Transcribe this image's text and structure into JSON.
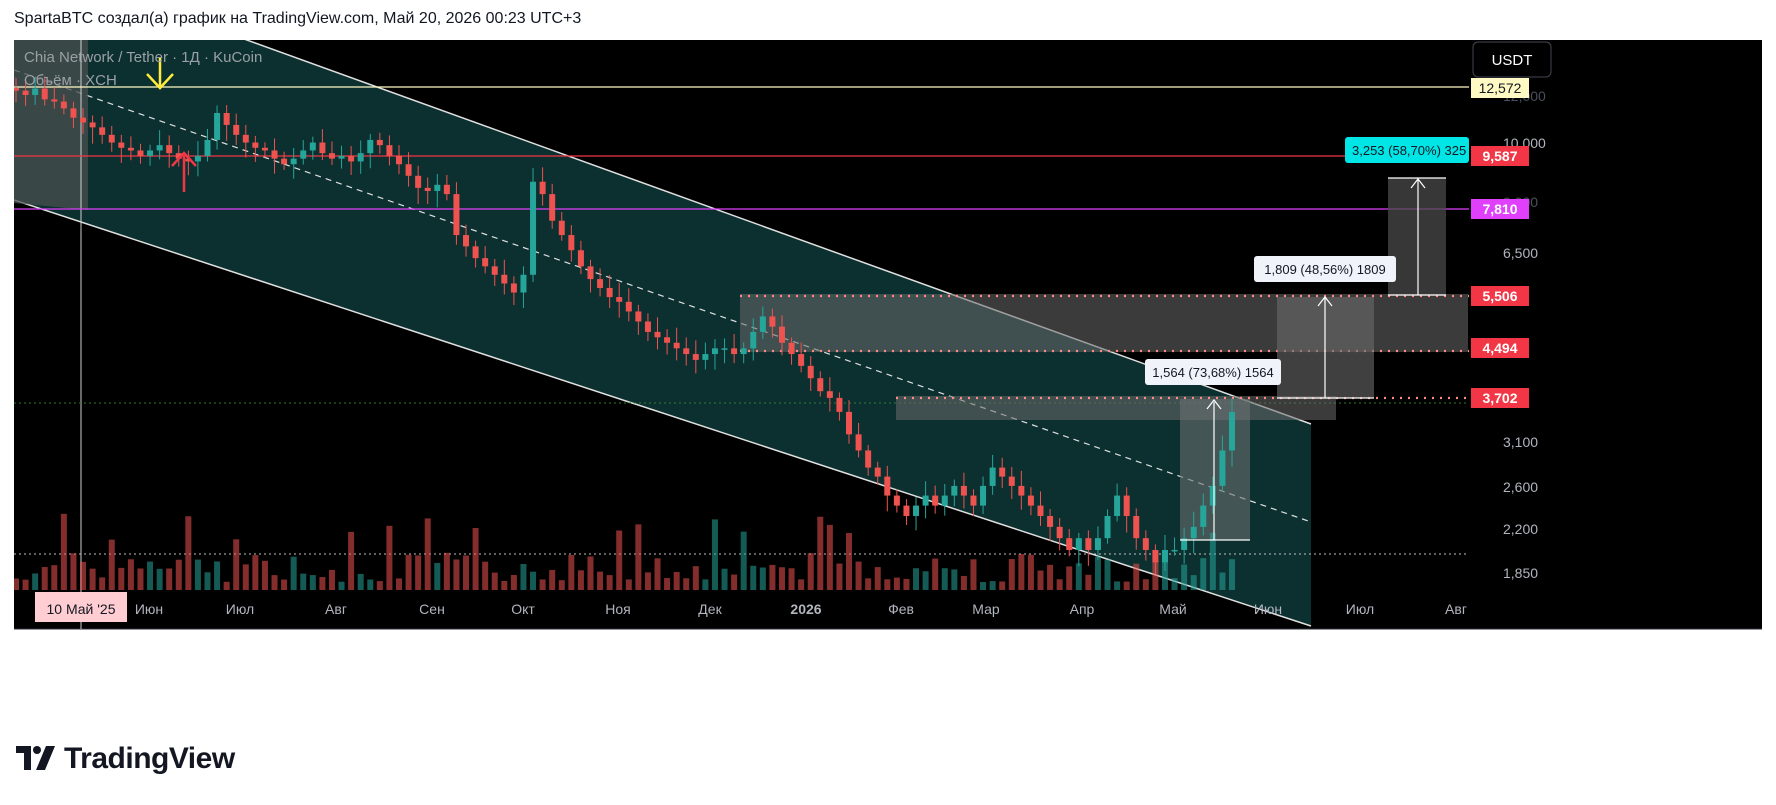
{
  "header": {
    "caption": "SpartaBTC создал(а) график на TradingView.com, Май 20, 2026 00:23 UTC+3"
  },
  "symbol": {
    "title": "Chia Network / Tether · 1Д · KuCoin",
    "volume_label": "Объём · XCH"
  },
  "currency_button": "USDT",
  "brand": {
    "name": "TradingView"
  },
  "colors": {
    "background": "#000000",
    "channel_fill": "#0c2f2f",
    "up_candle": "#26a69a",
    "down_candle": "#ef5350",
    "label_red": "#f23645",
    "label_magenta": "#e040fb",
    "label_cyan": "#00bcd4",
    "label_yellow": "#fff9c4"
  },
  "chart_data": {
    "type": "candlestick",
    "title": "Chia Network / Tether · 1Д · KuCoin",
    "price_scale": "log",
    "y_ticks": [
      "1,850",
      "2,200",
      "2,600",
      "3,100",
      "3,702",
      "4,494",
      "5,506",
      "6,500",
      "7,810",
      "9,000",
      "9,587",
      "10,000",
      "12,000",
      "12,572"
    ],
    "x_ticks": [
      "10 Май '25",
      "Июн",
      "Июл",
      "Авг",
      "Сен",
      "Окт",
      "Ноя",
      "Дек",
      "2026",
      "Фев",
      "Мар",
      "Апр",
      "Май",
      "Июн",
      "Июл",
      "Авг"
    ],
    "price_levels": [
      {
        "value": "12,572",
        "color": "#fff9c4"
      },
      {
        "value": "9,587",
        "color": "#f23645"
      },
      {
        "value": "7,810",
        "color": "#e040fb"
      },
      {
        "value": "5,506",
        "color": "#f23645"
      },
      {
        "value": "4,494",
        "color": "#f23645"
      },
      {
        "value": "3,702",
        "color": "#f23645"
      }
    ],
    "measurements": [
      {
        "label": "1,564 (73,68%) 1564"
      },
      {
        "label": "1,809 (48,56%) 1809"
      },
      {
        "label": "3,253 (58,70%) 325"
      }
    ],
    "series": [
      {
        "name": "XCHUSDT",
        "values": [
          12.4,
          12.2,
          12.5,
          12.0,
          11.9,
          11.6,
          11.2,
          11.0,
          10.8,
          10.5,
          10.2,
          10.0,
          9.9,
          9.7,
          9.9,
          10.1,
          9.8,
          9.6,
          9.5,
          9.7,
          10.3,
          11.4,
          10.9,
          10.5,
          10.2,
          10.0,
          9.9,
          9.6,
          9.4,
          9.6,
          9.9,
          10.2,
          9.8,
          9.6,
          9.7,
          9.5,
          9.8,
          10.3,
          10.1,
          9.7,
          9.4,
          9.0,
          8.6,
          8.5,
          8.7,
          8.4,
          7.2,
          6.9,
          6.6,
          6.4,
          6.2,
          6.0,
          5.8,
          6.2,
          8.8,
          8.4,
          7.6,
          7.2,
          6.8,
          6.4,
          6.1,
          5.9,
          5.7,
          5.6,
          5.4,
          5.2,
          5.0,
          4.9,
          4.8,
          4.7,
          4.6,
          4.5,
          4.6,
          4.7,
          4.7,
          4.6,
          4.7,
          5.0,
          5.3,
          5.1,
          4.8,
          4.6,
          4.4,
          4.2,
          4.0,
          3.9,
          3.7,
          3.4,
          3.2,
          3.0,
          2.9,
          2.7,
          2.6,
          2.5,
          2.6,
          2.7,
          2.6,
          2.7,
          2.8,
          2.7,
          2.6,
          2.8,
          3.0,
          2.9,
          2.8,
          2.7,
          2.6,
          2.5,
          2.4,
          2.3,
          2.2,
          2.3,
          2.2,
          2.3,
          2.5,
          2.7,
          2.5,
          2.3,
          2.2,
          2.1,
          2.2,
          2.2,
          2.3,
          2.4,
          2.6,
          2.8,
          3.2,
          3.7
        ]
      }
    ]
  }
}
